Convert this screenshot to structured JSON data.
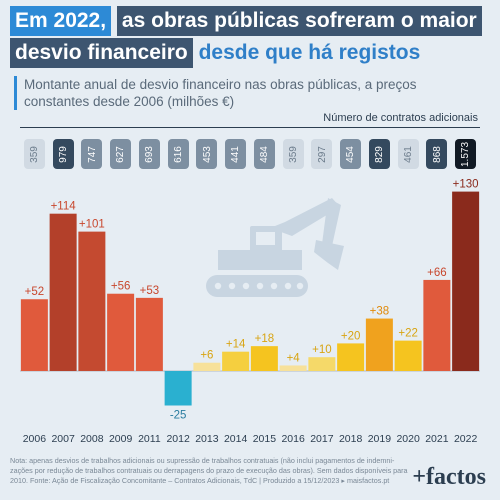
{
  "headline": {
    "part1": "Em 2022,",
    "part2": "as obras públicas sofreram o maior",
    "part3": "desvio financeiro",
    "part4": "desde que há registos"
  },
  "subtitle": "Montante anual de desvio financeiro nas obras públicas, a preços constantes desde 2006 (milhões €)",
  "contracts": {
    "label": "Número de contratos adicionais",
    "values": [
      "359",
      "979",
      "747",
      "627",
      "693",
      "616",
      "453",
      "441",
      "484",
      "359",
      "297",
      "454",
      "829",
      "461",
      "868",
      "1.573"
    ],
    "shades": [
      "light",
      "dark",
      "mid",
      "mid",
      "mid",
      "mid",
      "mid",
      "mid",
      "mid",
      "light",
      "light",
      "mid",
      "dark",
      "light",
      "dark",
      "black"
    ]
  },
  "chart_data": {
    "type": "bar",
    "categories": [
      "2006",
      "2007",
      "2008",
      "2009",
      "2011",
      "2012",
      "2013",
      "2014",
      "2015",
      "2016",
      "2017",
      "2018",
      "2019",
      "2020",
      "2021",
      "2022"
    ],
    "values": [
      52,
      114,
      101,
      56,
      53,
      -25,
      6,
      14,
      18,
      4,
      10,
      20,
      38,
      22,
      66,
      130
    ],
    "labels": [
      "+52",
      "+114",
      "+101",
      "+56",
      "+53",
      "-25",
      "+6",
      "+14",
      "+18",
      "+4",
      "+10",
      "+20",
      "+38",
      "+22",
      "+66",
      "+130"
    ],
    "colors": [
      "#e05a3c",
      "#b3402a",
      "#c44a30",
      "#e05a3c",
      "#e05a3c",
      "#2ab0d0",
      "#f7e19a",
      "#f5cf3f",
      "#f5c41f",
      "#f7e19a",
      "#f5d969",
      "#f5c41f",
      "#f0a21e",
      "#f5c41f",
      "#e05a3c",
      "#8a2a1c"
    ],
    "label_colors": [
      "#c8472d",
      "#c8472d",
      "#c8472d",
      "#c8472d",
      "#c8472d",
      "#2a7da0",
      "#d8a412",
      "#d8a412",
      "#d8a412",
      "#d8a412",
      "#d8a412",
      "#d8a412",
      "#e08a0a",
      "#d8a412",
      "#c8472d",
      "#8a2a1c"
    ],
    "ylim": [
      -28,
      135
    ]
  },
  "note": {
    "line1": "Nota: apenas desvios de trabalhos adicionais ou supressão de trabalhos contratuais (não inclui pagamentos de indemni-",
    "line2": "zações por redução de trabalhos contratuais ou derrapagens do prazo de execução das obras). Sem dados disponíveis para",
    "line3": "2010. Fonte: Ação de Fiscalização Concomitante – Contratos Adicionais, TdC | Produzido a 15/12/2023 ▸ maisfactos.pt"
  },
  "logo": "+factos",
  "colors": {
    "accent_blue": "#2d8ad6",
    "dark_navy": "#3d5570",
    "background": "#e6edf3"
  },
  "icon": "excavator-icon"
}
